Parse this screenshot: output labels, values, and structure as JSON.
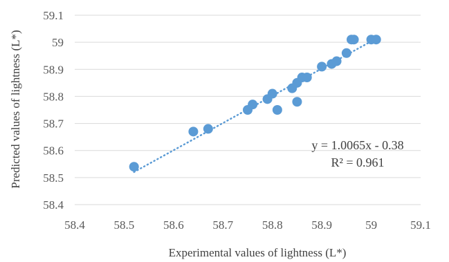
{
  "chart_data": {
    "type": "scatter",
    "title": "",
    "xlabel": "Experimental values of lightness (L*)",
    "ylabel": "Predicted values of lightness (L*)",
    "xlim": [
      58.4,
      59.1
    ],
    "ylim": [
      58.4,
      59.1
    ],
    "xticks": [
      "58.4",
      "58.5",
      "58.6",
      "58.7",
      "58.8",
      "58.9",
      "59",
      "59.1"
    ],
    "yticks": [
      "58.4",
      "58.5",
      "58.6",
      "58.7",
      "58.8",
      "58.9",
      "59",
      "59.1"
    ],
    "grid": "horizontal",
    "legend": "none",
    "series": [
      {
        "color": "#5b9bd5",
        "points": [
          [
            58.52,
            58.54
          ],
          [
            58.64,
            58.67
          ],
          [
            58.67,
            58.68
          ],
          [
            58.75,
            58.75
          ],
          [
            58.76,
            58.77
          ],
          [
            58.79,
            58.79
          ],
          [
            58.8,
            58.81
          ],
          [
            58.81,
            58.75
          ],
          [
            58.84,
            58.83
          ],
          [
            58.85,
            58.85
          ],
          [
            58.85,
            58.78
          ],
          [
            58.86,
            58.87
          ],
          [
            58.87,
            58.87
          ],
          [
            58.9,
            58.91
          ],
          [
            58.92,
            58.92
          ],
          [
            58.93,
            58.93
          ],
          [
            58.95,
            58.96
          ],
          [
            58.96,
            59.01
          ],
          [
            58.965,
            59.01
          ],
          [
            59.0,
            59.01
          ],
          [
            59.01,
            59.01
          ]
        ]
      }
    ],
    "trendline": {
      "type": "linear",
      "slope": 1.0065,
      "intercept": -0.38,
      "x_range": [
        58.52,
        59.01
      ],
      "style": "dotted",
      "color": "#5b9bd5"
    },
    "annotations": {
      "equation": "y = 1.0065x - 0.38",
      "r_squared": "R² = 0.961"
    }
  }
}
